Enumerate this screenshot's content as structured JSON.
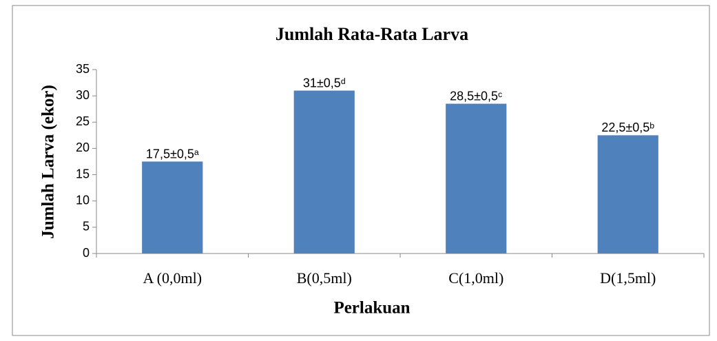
{
  "chart_data": {
    "type": "bar",
    "title": "Jumlah Rata-Rata Larva",
    "xlabel": "Perlakuan",
    "ylabel": "Jumlah Larva (ekor)",
    "categories": [
      "A (0,0ml)",
      "B(0,5ml)",
      "C(1,0ml)",
      "D(1,5ml)"
    ],
    "values": [
      17.5,
      31,
      28.5,
      22.5
    ],
    "value_labels": [
      "17,5±0,5ᵃ",
      "31±0,5ᵈ",
      "28,5±0,5ᶜ",
      "22,5±0,5ᵇ"
    ],
    "color": "#4f81bd",
    "ylim": [
      0,
      35
    ],
    "yticks": [
      0,
      5,
      10,
      15,
      20,
      25,
      30,
      35
    ],
    "grid": false
  }
}
